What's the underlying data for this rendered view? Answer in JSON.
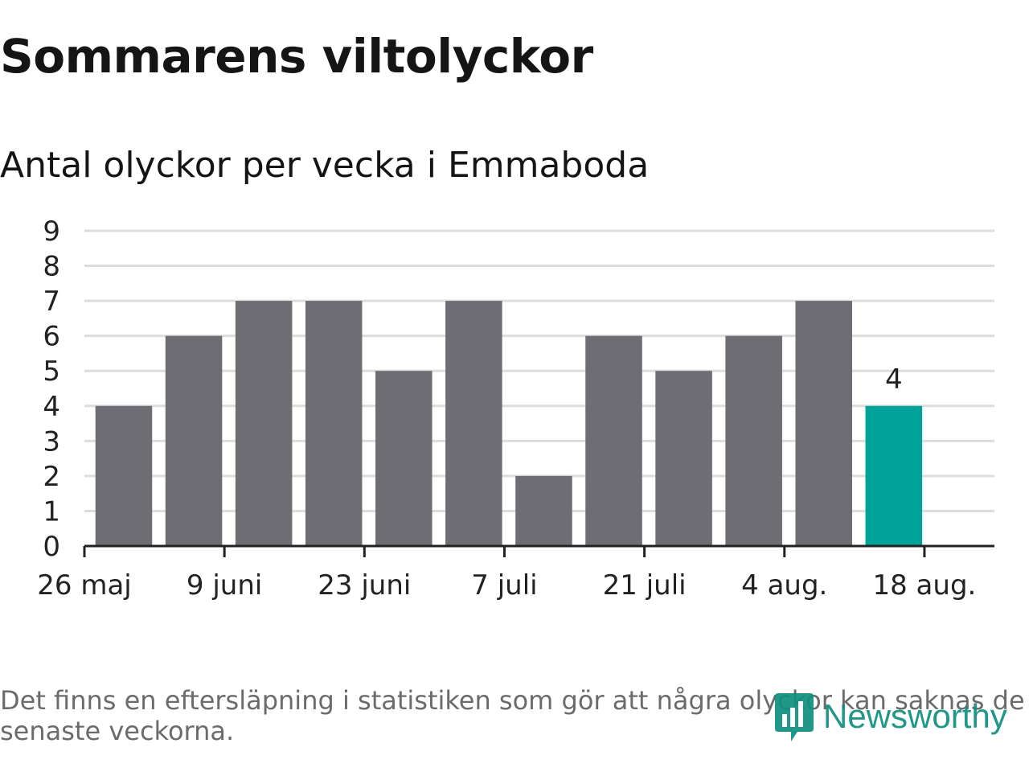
{
  "title": "Sommarens viltolyckor",
  "subtitle": "Antal olyckor per vecka i Emmaboda",
  "footnote": "Det finns en eftersläpning i statistiken som gör att några olyckor kan saknas de senaste veckorna.",
  "brand": {
    "name": "Newsworthy",
    "icon": "bar-chart-logo-icon",
    "color": "#0f8f7f"
  },
  "colors": {
    "bar": "#6e6d73",
    "highlight": "#00a39a",
    "grid": "#dddddd",
    "axis": "#222222"
  },
  "chart_data": {
    "type": "bar",
    "title": "Sommarens viltolyckor",
    "subtitle": "Antal olyckor per vecka i Emmaboda",
    "xlabel": "",
    "ylabel": "",
    "ylim": [
      0,
      9
    ],
    "yticks": [
      0,
      1,
      2,
      3,
      4,
      5,
      6,
      7,
      8,
      9
    ],
    "grid": true,
    "x_range": [
      "2019-05-26",
      "2019-08-25"
    ],
    "x_tick_dates": [
      "2019-05-26",
      "2019-06-09",
      "2019-06-23",
      "2019-07-07",
      "2019-07-21",
      "2019-08-04",
      "2019-08-18"
    ],
    "x_tick_labels": [
      "26 maj",
      "9 juni",
      "23 juni",
      "7 juli",
      "21 juli",
      "4 aug.",
      "18 aug."
    ],
    "weeks": [
      "2019-05-27",
      "2019-06-03",
      "2019-06-10",
      "2019-06-17",
      "2019-06-24",
      "2019-07-01",
      "2019-07-08",
      "2019-07-15",
      "2019-07-22",
      "2019-07-29",
      "2019-08-05",
      "2019-08-12",
      "2019-08-19"
    ],
    "values": [
      4,
      6,
      7,
      7,
      5,
      7,
      2,
      6,
      5,
      6,
      7,
      4,
      null
    ],
    "highlight_week": "2019-08-12",
    "data_labels": [
      {
        "week": "2019-08-12",
        "text": "4"
      }
    ]
  }
}
